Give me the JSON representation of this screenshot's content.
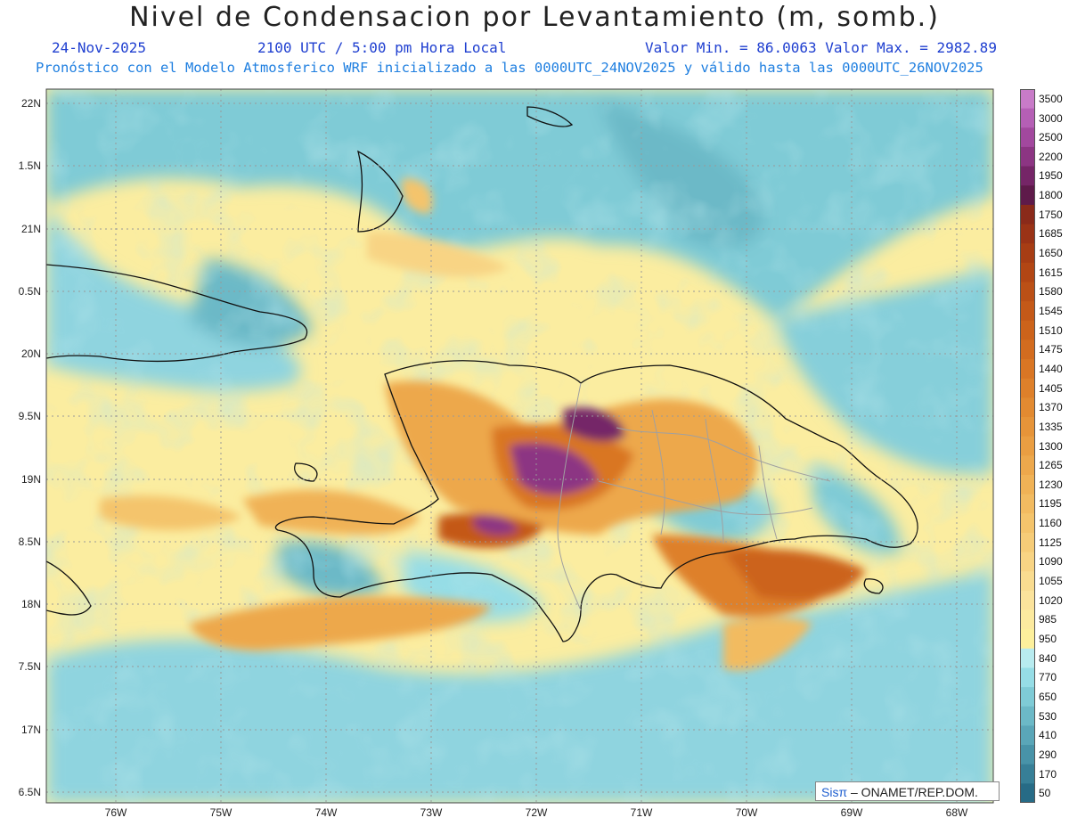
{
  "header": {
    "title": "Nivel de Condensacion por Levantamiento (m, somb.)",
    "date": "24-Nov-2025",
    "time": "2100 UTC / 5:00 pm Hora Local",
    "minmax": "Valor Min. = 86.0063  Valor Max. = 2982.89",
    "forecast": "Pronóstico con el Modelo Atmosferico WRF inicializado a las 0000UTC_24NOV2025 y válido hasta las  0000UTC_26NOV2025"
  },
  "map": {
    "lat_labels": [
      "22N",
      "1.5N",
      "21N",
      "0.5N",
      "20N",
      "9.5N",
      "19N",
      "8.5N",
      "18N",
      "7.5N",
      "17N",
      "6.5N"
    ],
    "lon_labels": [
      "76W",
      "75W",
      "74W",
      "73W",
      "72W",
      "71W",
      "70W",
      "69W",
      "68W"
    ],
    "credit_brand": "Sisπ",
    "credit_text": " – ONAMET/REP.DOM."
  },
  "colorbar": {
    "labels": [
      "3500",
      "3000",
      "2500",
      "2200",
      "1950",
      "1800",
      "1750",
      "1685",
      "1650",
      "1615",
      "1580",
      "1545",
      "1510",
      "1475",
      "1440",
      "1405",
      "1370",
      "1335",
      "1300",
      "1265",
      "1230",
      "1195",
      "1160",
      "1125",
      "1090",
      "1055",
      "1020",
      "985",
      "950",
      "840",
      "770",
      "650",
      "530",
      "410",
      "290",
      "170",
      "50"
    ],
    "colors": [
      "#c87bc8",
      "#b55fb5",
      "#a2489e",
      "#8c3583",
      "#752567",
      "#5e1a4a",
      "#8a2a1a",
      "#9a3316",
      "#a73d14",
      "#b24614",
      "#bb5016",
      "#c45918",
      "#cc631b",
      "#d36c1f",
      "#d97624",
      "#de802a",
      "#e28a31",
      "#e69439",
      "#ea9e42",
      "#eda84c",
      "#f0b256",
      "#f2bb61",
      "#f4c46c",
      "#f6cc78",
      "#f8d484",
      "#f9dc90",
      "#fbe39c",
      "#fcea9f",
      "#fdf09c",
      "#b8ebef",
      "#96dde6",
      "#7fcbd6",
      "#6cb9c7",
      "#5aa6b8",
      "#4893a8",
      "#377f97",
      "#276b86"
    ]
  }
}
